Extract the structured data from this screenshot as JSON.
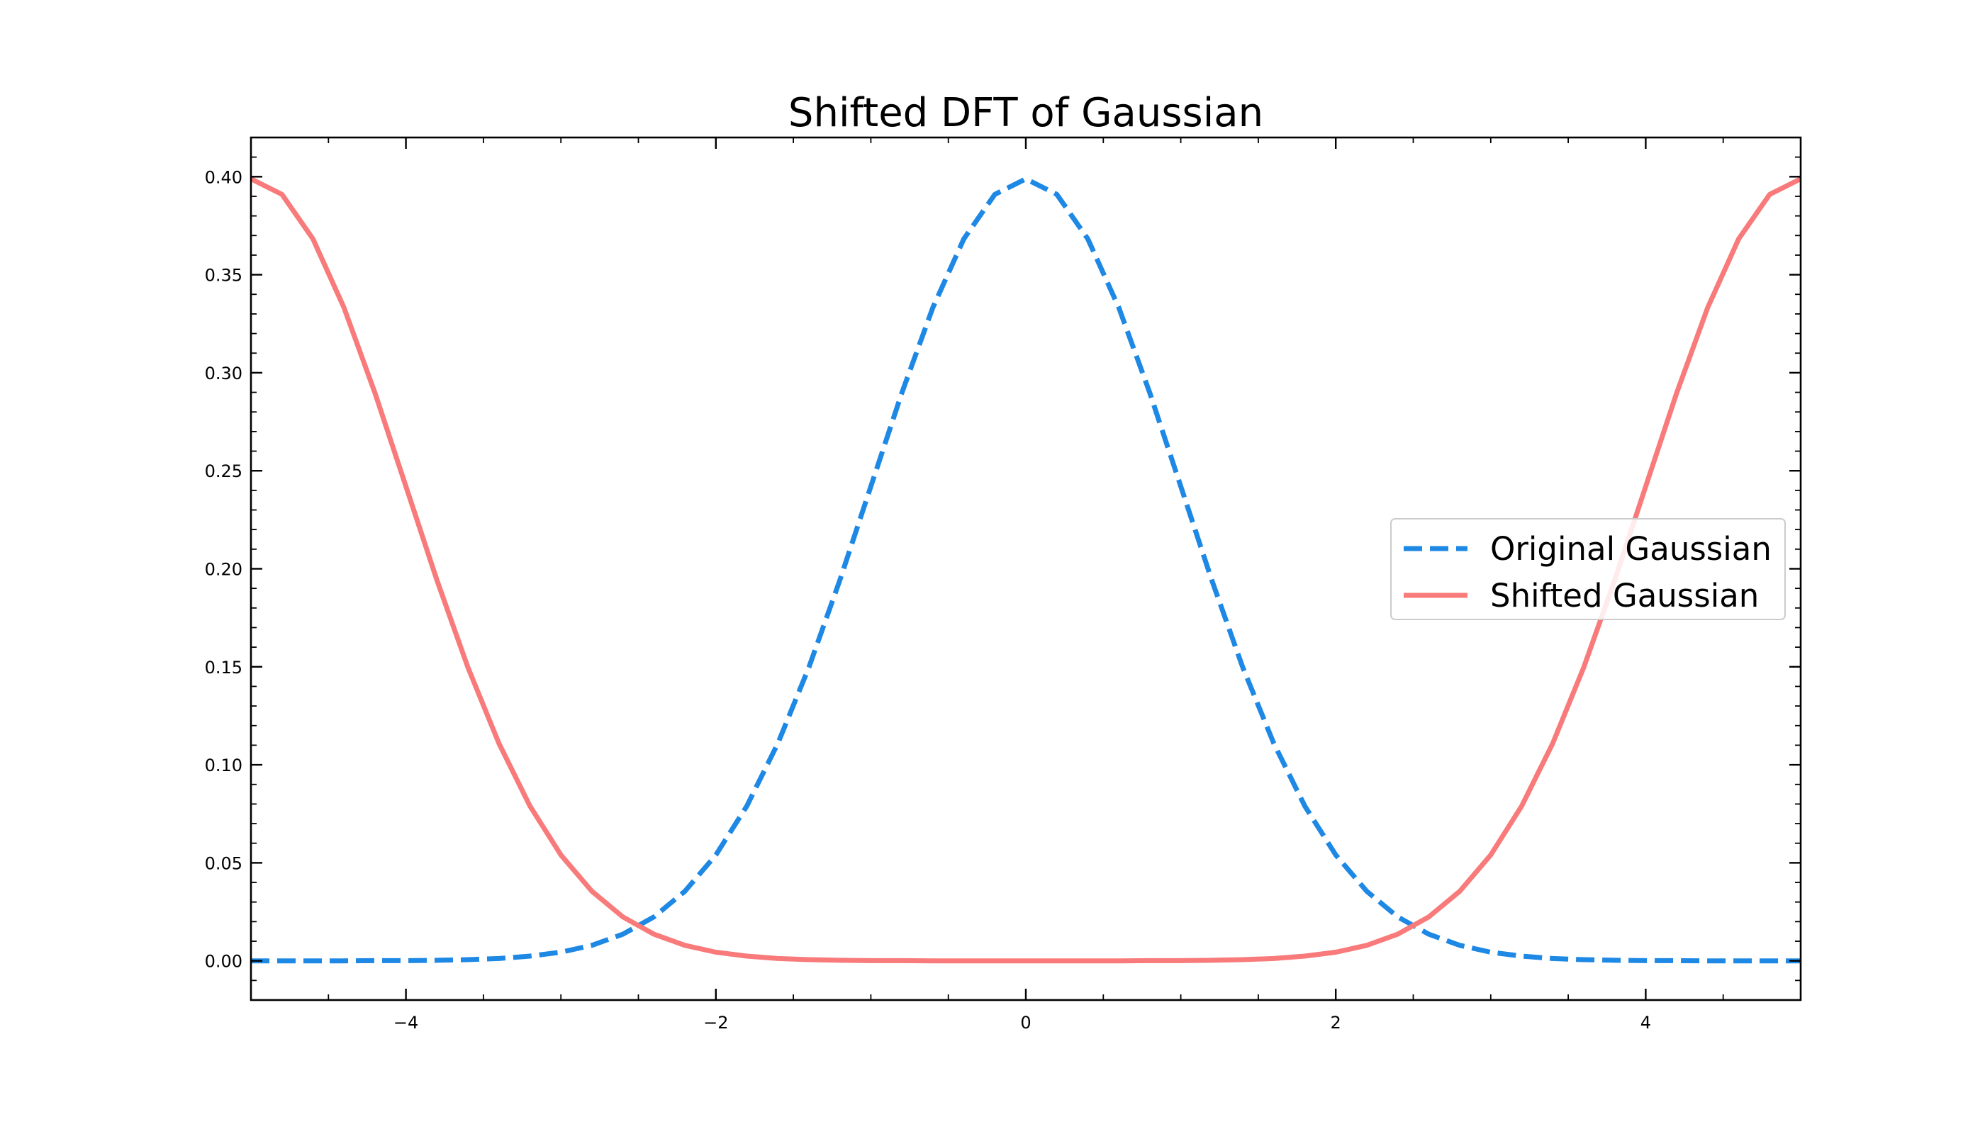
{
  "chart_data": {
    "type": "line",
    "title": "Shifted DFT of Gaussian",
    "xlabel": "",
    "ylabel": "",
    "xlim": [
      -5,
      5
    ],
    "ylim": [
      -0.02,
      0.42
    ],
    "x_ticks": [
      -4,
      -2,
      0,
      2,
      4
    ],
    "x_tick_labels": [
      "−4",
      "−2",
      "0",
      "2",
      "4"
    ],
    "y_ticks": [
      0.0,
      0.05,
      0.1,
      0.15,
      0.2,
      0.25,
      0.3,
      0.35,
      0.4
    ],
    "y_tick_labels": [
      "0.00",
      "0.05",
      "0.10",
      "0.15",
      "0.20",
      "0.25",
      "0.30",
      "0.35",
      "0.40"
    ],
    "grid": false,
    "legend_position": "center-right",
    "x": [
      -5.0,
      -4.8,
      -4.6,
      -4.4,
      -4.2,
      -4.0,
      -3.8,
      -3.6,
      -3.4,
      -3.2,
      -3.0,
      -2.8,
      -2.6,
      -2.4,
      -2.2,
      -2.0,
      -1.8,
      -1.6,
      -1.4,
      -1.2,
      -1.0,
      -0.8,
      -0.6,
      -0.4,
      -0.2,
      0.0,
      0.2,
      0.4,
      0.6,
      0.8,
      1.0,
      1.2,
      1.4,
      1.6,
      1.8,
      2.0,
      2.2,
      2.4,
      2.6,
      2.8,
      3.0,
      3.2,
      3.4,
      3.6,
      3.8,
      4.0,
      4.2,
      4.4,
      4.6,
      4.8,
      5.0
    ],
    "series": [
      {
        "name": "Original Gaussian",
        "color": "#1e88e5",
        "line_style": "dashed",
        "values": [
          0.0,
          0.0,
          0.0,
          0.0,
          0.0001,
          0.0001,
          0.0003,
          0.0006,
          0.0012,
          0.0024,
          0.0044,
          0.0079,
          0.0136,
          0.0224,
          0.0355,
          0.054,
          0.079,
          0.1109,
          0.1497,
          0.1942,
          0.242,
          0.2897,
          0.3332,
          0.3683,
          0.391,
          0.3989,
          0.391,
          0.3683,
          0.3332,
          0.2897,
          0.242,
          0.1942,
          0.1497,
          0.1109,
          0.079,
          0.054,
          0.0355,
          0.0224,
          0.0136,
          0.0079,
          0.0044,
          0.0024,
          0.0012,
          0.0006,
          0.0003,
          0.0001,
          0.0001,
          0.0,
          0.0,
          0.0,
          0.0
        ]
      },
      {
        "name": "Shifted Gaussian",
        "color": "#f87a7a",
        "line_style": "solid",
        "values": [
          0.3989,
          0.391,
          0.3683,
          0.3332,
          0.2897,
          0.242,
          0.1942,
          0.1497,
          0.1109,
          0.079,
          0.054,
          0.0355,
          0.0224,
          0.0136,
          0.0079,
          0.0044,
          0.0024,
          0.0012,
          0.0006,
          0.0003,
          0.0001,
          0.0001,
          0.0,
          0.0,
          0.0,
          0.0,
          0.0,
          0.0,
          0.0,
          0.0001,
          0.0001,
          0.0003,
          0.0006,
          0.0012,
          0.0024,
          0.0044,
          0.0079,
          0.0136,
          0.0224,
          0.0355,
          0.054,
          0.079,
          0.1109,
          0.1497,
          0.1942,
          0.242,
          0.2897,
          0.3332,
          0.3683,
          0.391,
          0.3989
        ]
      }
    ]
  }
}
